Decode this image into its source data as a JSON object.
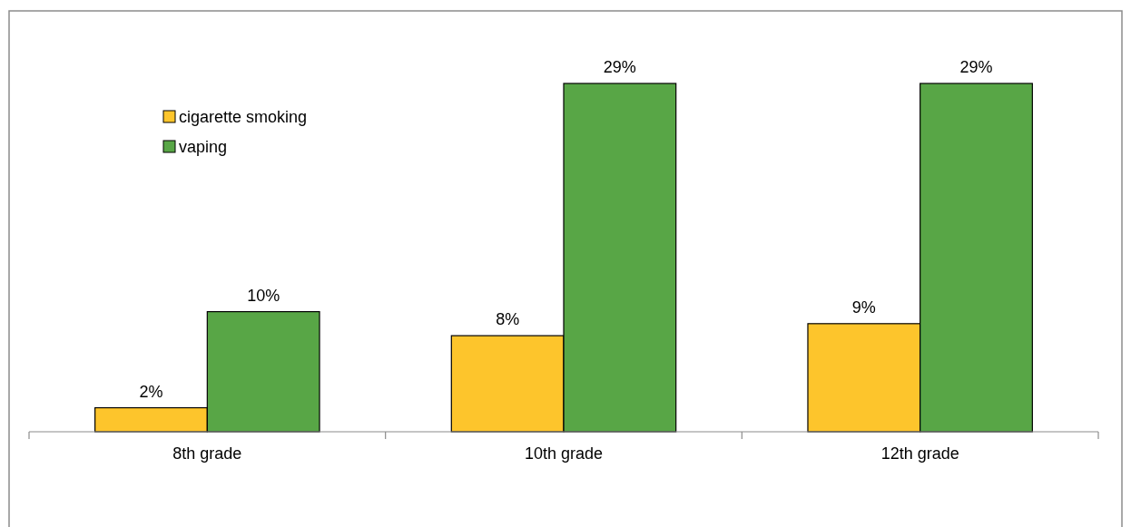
{
  "chart_data": {
    "type": "bar",
    "categories": [
      "8th grade",
      "10th grade",
      "12th grade"
    ],
    "series": [
      {
        "name": "cigarette smoking",
        "color": "#fdc52c",
        "values": [
          2,
          8,
          9
        ],
        "value_labels": [
          "2%",
          "8%",
          "9%"
        ]
      },
      {
        "name": "vaping",
        "color": "#58a646",
        "values": [
          10,
          29,
          29
        ],
        "value_labels": [
          "10%",
          "29%",
          "29%"
        ]
      }
    ],
    "legend": "top left"
  }
}
